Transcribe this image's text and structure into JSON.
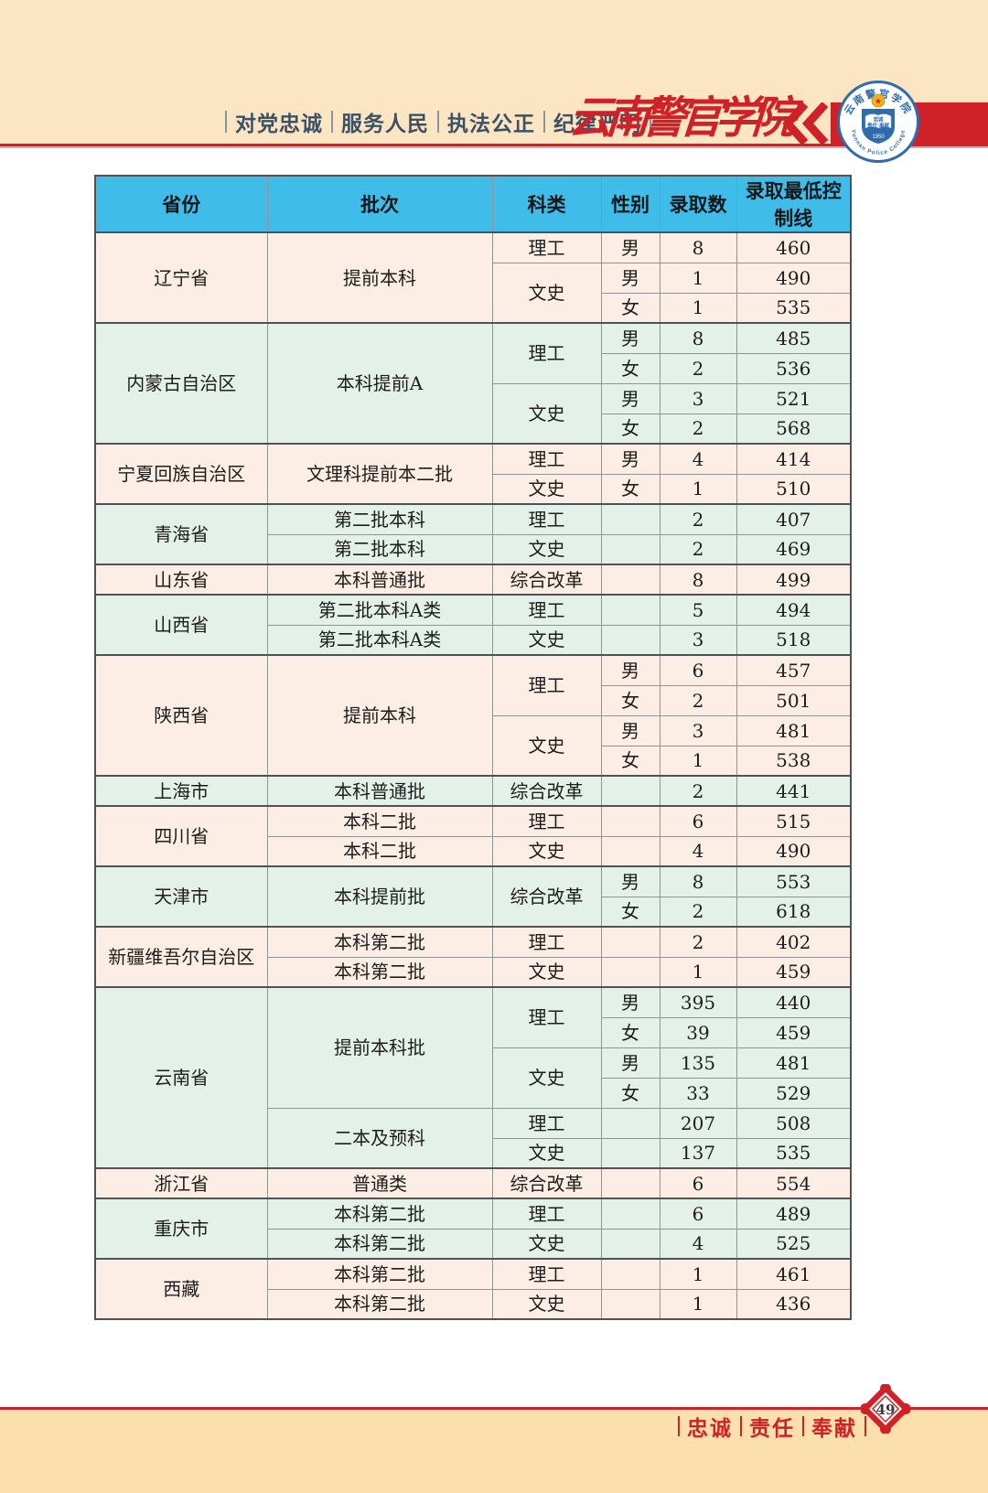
{
  "header": {
    "slogans": [
      "对党忠诚",
      "服务人民",
      "执法公正",
      "纪律严明"
    ],
    "college_name": "云南警官学院",
    "badge": {
      "top_text": "云南警官学院",
      "bottom_text": "Yunnan Police College",
      "book_line1": "忠诚",
      "book_line2": "责任 奉献",
      "year": "1950"
    }
  },
  "footer": {
    "slogans": [
      "忠诚",
      "责任",
      "奉献"
    ],
    "page_number": "49"
  },
  "colors": {
    "accent_red": "#cf2127",
    "table_header_blue": "#3fbde8",
    "row_pink": "#fceee4",
    "row_green": "#e4f1e9",
    "header_band_cream": "#fbe5c3",
    "footer_band_tan": "#fbe0ad",
    "slogan_blue_gray": "#3b5266",
    "badge_blue": "#2e6cb0"
  },
  "table": {
    "columns": [
      "省份",
      "批次",
      "科类",
      "性别",
      "录取数",
      "录取最低控制线"
    ],
    "rows": [
      {
        "bg": "pink",
        "gs": true,
        "cells": [
          {
            "t": "辽宁省",
            "rs": 3
          },
          {
            "t": "提前本科",
            "rs": 3
          },
          {
            "t": "理工"
          },
          {
            "t": "男"
          },
          {
            "t": "8"
          },
          {
            "t": "460"
          }
        ]
      },
      {
        "bg": "pink",
        "gs": false,
        "cells": [
          {
            "t": "文史",
            "rs": 2
          },
          {
            "t": "男"
          },
          {
            "t": "1"
          },
          {
            "t": "490"
          }
        ]
      },
      {
        "bg": "pink",
        "gs": false,
        "cells": [
          {
            "t": "女"
          },
          {
            "t": "1"
          },
          {
            "t": "535"
          }
        ]
      },
      {
        "bg": "green",
        "gs": true,
        "cells": [
          {
            "t": "内蒙古自治区",
            "rs": 4
          },
          {
            "t": "本科提前A",
            "rs": 4
          },
          {
            "t": "理工",
            "rs": 2
          },
          {
            "t": "男"
          },
          {
            "t": "8"
          },
          {
            "t": "485"
          }
        ]
      },
      {
        "bg": "green",
        "gs": false,
        "cells": [
          {
            "t": "女"
          },
          {
            "t": "2"
          },
          {
            "t": "536"
          }
        ]
      },
      {
        "bg": "green",
        "gs": false,
        "cells": [
          {
            "t": "文史",
            "rs": 2
          },
          {
            "t": "男"
          },
          {
            "t": "3"
          },
          {
            "t": "521"
          }
        ]
      },
      {
        "bg": "green",
        "gs": false,
        "cells": [
          {
            "t": "女"
          },
          {
            "t": "2"
          },
          {
            "t": "568"
          }
        ]
      },
      {
        "bg": "pink",
        "gs": true,
        "cells": [
          {
            "t": "宁夏回族自治区",
            "rs": 2
          },
          {
            "t": "文理科提前本二批",
            "rs": 2
          },
          {
            "t": "理工"
          },
          {
            "t": "男"
          },
          {
            "t": "4"
          },
          {
            "t": "414"
          }
        ]
      },
      {
        "bg": "pink",
        "gs": false,
        "cells": [
          {
            "t": "文史"
          },
          {
            "t": "女"
          },
          {
            "t": "1"
          },
          {
            "t": "510"
          }
        ]
      },
      {
        "bg": "green",
        "gs": true,
        "cells": [
          {
            "t": "青海省",
            "rs": 2
          },
          {
            "t": "第二批本科"
          },
          {
            "t": "理工"
          },
          {
            "t": ""
          },
          {
            "t": "2"
          },
          {
            "t": "407"
          }
        ]
      },
      {
        "bg": "green",
        "gs": false,
        "cells": [
          {
            "t": "第二批本科"
          },
          {
            "t": "文史"
          },
          {
            "t": ""
          },
          {
            "t": "2"
          },
          {
            "t": "469"
          }
        ]
      },
      {
        "bg": "pink",
        "gs": true,
        "cells": [
          {
            "t": "山东省"
          },
          {
            "t": "本科普通批"
          },
          {
            "t": "综合改革"
          },
          {
            "t": ""
          },
          {
            "t": "8"
          },
          {
            "t": "499"
          }
        ]
      },
      {
        "bg": "green",
        "gs": true,
        "cells": [
          {
            "t": "山西省",
            "rs": 2
          },
          {
            "t": "第二批本科A类"
          },
          {
            "t": "理工"
          },
          {
            "t": ""
          },
          {
            "t": "5"
          },
          {
            "t": "494"
          }
        ]
      },
      {
        "bg": "green",
        "gs": false,
        "cells": [
          {
            "t": "第二批本科A类"
          },
          {
            "t": "文史"
          },
          {
            "t": ""
          },
          {
            "t": "3"
          },
          {
            "t": "518"
          }
        ]
      },
      {
        "bg": "pink",
        "gs": true,
        "cells": [
          {
            "t": "陕西省",
            "rs": 4
          },
          {
            "t": "提前本科",
            "rs": 4
          },
          {
            "t": "理工",
            "rs": 2
          },
          {
            "t": "男"
          },
          {
            "t": "6"
          },
          {
            "t": "457"
          }
        ]
      },
      {
        "bg": "pink",
        "gs": false,
        "cells": [
          {
            "t": "女"
          },
          {
            "t": "2"
          },
          {
            "t": "501"
          }
        ]
      },
      {
        "bg": "pink",
        "gs": false,
        "cells": [
          {
            "t": "文史",
            "rs": 2
          },
          {
            "t": "男"
          },
          {
            "t": "3"
          },
          {
            "t": "481"
          }
        ]
      },
      {
        "bg": "pink",
        "gs": false,
        "cells": [
          {
            "t": "女"
          },
          {
            "t": "1"
          },
          {
            "t": "538"
          }
        ]
      },
      {
        "bg": "green",
        "gs": true,
        "cells": [
          {
            "t": "上海市"
          },
          {
            "t": "本科普通批"
          },
          {
            "t": "综合改革"
          },
          {
            "t": ""
          },
          {
            "t": "2"
          },
          {
            "t": "441"
          }
        ]
      },
      {
        "bg": "pink",
        "gs": true,
        "cells": [
          {
            "t": "四川省",
            "rs": 2
          },
          {
            "t": "本科二批"
          },
          {
            "t": "理工"
          },
          {
            "t": ""
          },
          {
            "t": "6"
          },
          {
            "t": "515"
          }
        ]
      },
      {
        "bg": "pink",
        "gs": false,
        "cells": [
          {
            "t": "本科二批"
          },
          {
            "t": "文史"
          },
          {
            "t": ""
          },
          {
            "t": "4"
          },
          {
            "t": "490"
          }
        ]
      },
      {
        "bg": "green",
        "gs": true,
        "cells": [
          {
            "t": "天津市",
            "rs": 2
          },
          {
            "t": "本科提前批",
            "rs": 2
          },
          {
            "t": "综合改革",
            "rs": 2
          },
          {
            "t": "男"
          },
          {
            "t": "8"
          },
          {
            "t": "553"
          }
        ]
      },
      {
        "bg": "green",
        "gs": false,
        "cells": [
          {
            "t": "女"
          },
          {
            "t": "2"
          },
          {
            "t": "618"
          }
        ]
      },
      {
        "bg": "pink",
        "gs": true,
        "cells": [
          {
            "t": "新疆维吾尔自治区",
            "rs": 2
          },
          {
            "t": "本科第二批"
          },
          {
            "t": "理工"
          },
          {
            "t": ""
          },
          {
            "t": "2"
          },
          {
            "t": "402"
          }
        ]
      },
      {
        "bg": "pink",
        "gs": false,
        "cells": [
          {
            "t": "本科第二批"
          },
          {
            "t": "文史"
          },
          {
            "t": ""
          },
          {
            "t": "1"
          },
          {
            "t": "459"
          }
        ]
      },
      {
        "bg": "green",
        "gs": true,
        "cells": [
          {
            "t": "云南省",
            "rs": 6
          },
          {
            "t": "提前本科批",
            "rs": 4
          },
          {
            "t": "理工",
            "rs": 2
          },
          {
            "t": "男"
          },
          {
            "t": "395"
          },
          {
            "t": "440"
          }
        ]
      },
      {
        "bg": "green",
        "gs": false,
        "cells": [
          {
            "t": "女"
          },
          {
            "t": "39"
          },
          {
            "t": "459"
          }
        ]
      },
      {
        "bg": "green",
        "gs": false,
        "cells": [
          {
            "t": "文史",
            "rs": 2
          },
          {
            "t": "男"
          },
          {
            "t": "135"
          },
          {
            "t": "481"
          }
        ]
      },
      {
        "bg": "green",
        "gs": false,
        "cells": [
          {
            "t": "女"
          },
          {
            "t": "33"
          },
          {
            "t": "529"
          }
        ]
      },
      {
        "bg": "green",
        "gs": false,
        "cells": [
          {
            "t": "二本及预科",
            "rs": 2
          },
          {
            "t": "理工"
          },
          {
            "t": ""
          },
          {
            "t": "207"
          },
          {
            "t": "508"
          }
        ]
      },
      {
        "bg": "green",
        "gs": false,
        "cells": [
          {
            "t": "文史"
          },
          {
            "t": ""
          },
          {
            "t": "137"
          },
          {
            "t": "535"
          }
        ]
      },
      {
        "bg": "pink",
        "gs": true,
        "cells": [
          {
            "t": "浙江省"
          },
          {
            "t": "普通类"
          },
          {
            "t": "综合改革"
          },
          {
            "t": ""
          },
          {
            "t": "6"
          },
          {
            "t": "554"
          }
        ]
      },
      {
        "bg": "green",
        "gs": true,
        "cells": [
          {
            "t": "重庆市",
            "rs": 2
          },
          {
            "t": "本科第二批"
          },
          {
            "t": "理工"
          },
          {
            "t": ""
          },
          {
            "t": "6"
          },
          {
            "t": "489"
          }
        ]
      },
      {
        "bg": "green",
        "gs": false,
        "cells": [
          {
            "t": "本科第二批"
          },
          {
            "t": "文史"
          },
          {
            "t": ""
          },
          {
            "t": "4"
          },
          {
            "t": "525"
          }
        ]
      },
      {
        "bg": "pink",
        "gs": true,
        "cells": [
          {
            "t": "西藏",
            "rs": 2
          },
          {
            "t": "本科第二批"
          },
          {
            "t": "理工"
          },
          {
            "t": ""
          },
          {
            "t": "1"
          },
          {
            "t": "461"
          }
        ]
      },
      {
        "bg": "pink",
        "gs": false,
        "cells": [
          {
            "t": "本科第二批"
          },
          {
            "t": "文史"
          },
          {
            "t": ""
          },
          {
            "t": "1"
          },
          {
            "t": "436"
          }
        ]
      }
    ]
  }
}
